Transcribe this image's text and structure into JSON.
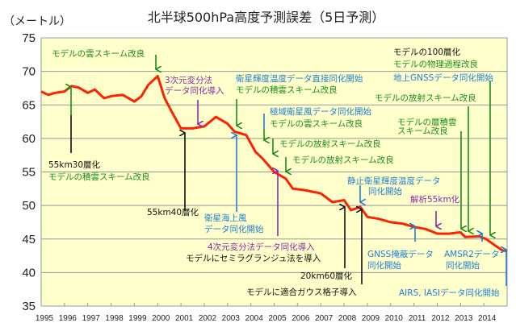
{
  "chart_data": {
    "type": "line",
    "title": "北半球500hPa高度予測誤差（5日予測）",
    "ylabel": "（メートル）",
    "xlabel": "",
    "ylim": [
      35,
      75
    ],
    "yticks": [
      35,
      40,
      45,
      50,
      55,
      60,
      65,
      70,
      75
    ],
    "xlim": [
      1995,
      2015
    ],
    "xticks": [
      "1995",
      "1996",
      "1997",
      "1998",
      "1999",
      "2000",
      "2001",
      "2002",
      "2003",
      "2004",
      "2005",
      "2006",
      "2007",
      "2008",
      "2009",
      "2010",
      "2011",
      "2012",
      "2013",
      "2014"
    ],
    "grid": "horizontal",
    "line_color": "#ff2200",
    "background": "#ffffcc",
    "x": [
      1995.0,
      1995.3,
      1995.6,
      1996.0,
      1996.3,
      1996.6,
      1997.0,
      1997.3,
      1997.7,
      1998.0,
      1998.5,
      1999.0,
      1999.3,
      1999.6,
      2000.0,
      2000.3,
      2000.6,
      2001.0,
      2001.5,
      2002.0,
      2002.5,
      2003.0,
      2003.3,
      2003.8,
      2004.2,
      2004.5,
      2005.0,
      2005.5,
      2005.8,
      2006.3,
      2007.0,
      2007.5,
      2008.0,
      2008.3,
      2008.7,
      2009.0,
      2009.5,
      2010.0,
      2010.5,
      2011.0,
      2011.5,
      2012.0,
      2012.5,
      2013.0,
      2013.2,
      2013.8,
      2014.1,
      2014.5,
      2014.8,
      2015.0
    ],
    "values": [
      67.0,
      66.5,
      66.8,
      67.0,
      67.8,
      67.6,
      66.8,
      67.3,
      66.0,
      66.3,
      66.5,
      65.5,
      66.3,
      68.0,
      69.3,
      66.0,
      64.0,
      61.5,
      61.5,
      61.8,
      63.2,
      62.2,
      61.0,
      60.5,
      58.0,
      57.0,
      55.0,
      54.0,
      52.5,
      52.3,
      51.8,
      50.5,
      50.8,
      49.3,
      49.8,
      48.3,
      48.0,
      47.5,
      47.3,
      46.8,
      46.5,
      45.8,
      45.8,
      46.0,
      45.3,
      45.4,
      45.0,
      44.0,
      43.3,
      43.2
    ]
  },
  "annotations": [
    {
      "text": "モデルの雲スキーム改良",
      "color": "#1a8c1a"
    },
    {
      "text": "3次元変分法",
      "color": "#8a2ca8"
    },
    {
      "text": "データ同化導入",
      "color": "#8a2ca8"
    },
    {
      "text": "衛星輝度温度データ直接同化開始",
      "color": "#1f7fd0"
    },
    {
      "text": "モデルの積雲スキーム改良",
      "color": "#1a8c1a"
    },
    {
      "text": "極域衛星風データ同化開始",
      "color": "#1f7fd0"
    },
    {
      "text": "モデルの雲スキーム改良",
      "color": "#1a8c1a"
    },
    {
      "text": "モデルの放射スキーム改良",
      "color": "#1a8c1a"
    },
    {
      "text": "モデルの放射スキーム改良",
      "color": "#1a8c1a"
    },
    {
      "text": "55km30層化",
      "color": "#111111"
    },
    {
      "text": "モデルの積雲スキーム改良",
      "color": "#1a8c1a"
    },
    {
      "text": "55km40層化",
      "color": "#111111"
    },
    {
      "text": "衛星海上風",
      "color": "#1f7fd0"
    },
    {
      "text": "データ同化開始",
      "color": "#1f7fd0"
    },
    {
      "text": "4次元変分法データ同化導入",
      "color": "#8a2ca8"
    },
    {
      "text": "モデルにセミラグランジュ法を導入",
      "color": "#111111"
    },
    {
      "text": "静止衛星輝度温度データ",
      "color": "#1f7fd0"
    },
    {
      "text": "同化開始",
      "color": "#1f7fd0"
    },
    {
      "text": "20km60層化",
      "color": "#111111"
    },
    {
      "text": "モデルに適合ガウス格子導入",
      "color": "#111111"
    },
    {
      "text": "解析55km化",
      "color": "#8a2ca8"
    },
    {
      "text": "GNSS掩蔽データ",
      "color": "#1f7fd0"
    },
    {
      "text": "同化開始",
      "color": "#1f7fd0"
    },
    {
      "text": "AMSR2データ",
      "color": "#1f7fd0"
    },
    {
      "text": "同化開始",
      "color": "#1f7fd0"
    },
    {
      "text": "AIRS, IASIデータ同化開始",
      "color": "#1f7fd0"
    },
    {
      "text": "モデルの100層化",
      "color": "#111111"
    },
    {
      "text": "モデルの物理過程改良",
      "color": "#1a8c1a"
    },
    {
      "text": "地上GNSSデータ同化開始",
      "color": "#1f7fd0"
    },
    {
      "text": "モデルの放射スキーム改良",
      "color": "#1a8c1a"
    },
    {
      "text": "モデルの層積雲",
      "color": "#1a8c1a"
    },
    {
      "text": "スキーム改良",
      "color": "#1a8c1a"
    }
  ]
}
